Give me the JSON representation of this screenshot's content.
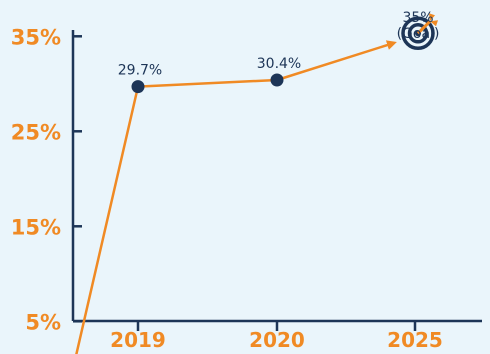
{
  "chart_data": {
    "type": "line",
    "title": "",
    "xlabel": "",
    "ylabel": "",
    "ylim": [
      0,
      40
    ],
    "y_ticks": [
      {
        "value": 5,
        "label": "5%"
      },
      {
        "value": 15,
        "label": "15%"
      },
      {
        "value": 25,
        "label": "25%"
      },
      {
        "value": 35,
        "label": "35%"
      }
    ],
    "categories": [
      "2019",
      "2020",
      "2025"
    ],
    "series": [
      {
        "points": [
          {
            "x": "origin",
            "y": 0
          },
          {
            "x": "2019",
            "y": 29.7,
            "label": "29.7%"
          },
          {
            "x": "2020",
            "y": 30.4,
            "label": "30.4%"
          },
          {
            "x": "2025",
            "y": 35,
            "label_lines": [
              "35%",
              "(Goal)"
            ],
            "marker": "target-icon"
          }
        ]
      }
    ],
    "grid": false,
    "legend": "none"
  },
  "colors": {
    "background": "#eaf5fb",
    "axis": "#1d3557",
    "tick_label": "#f08a24",
    "line": "#f08a24",
    "marker": "#1d3557",
    "text": "#1d3557"
  }
}
